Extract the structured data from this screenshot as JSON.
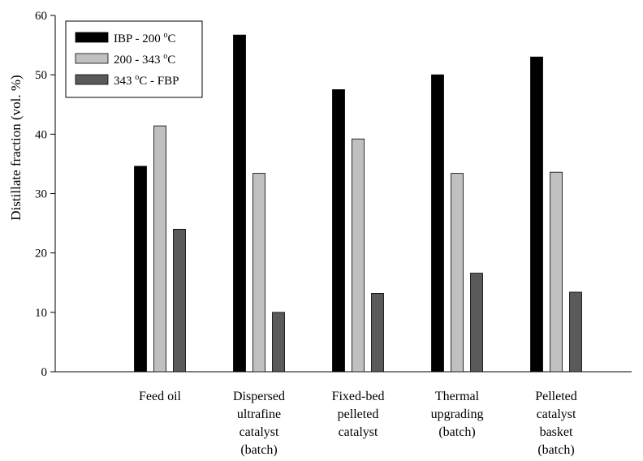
{
  "chart_data": {
    "type": "bar",
    "ylabel": "Distillate fraction (vol. %)",
    "xlabel": "",
    "ylim": [
      0,
      60
    ],
    "yticks": [
      0,
      10,
      20,
      30,
      40,
      50,
      60
    ],
    "categories": [
      [
        "Feed oil"
      ],
      [
        "Dispersed",
        "ultrafine",
        "catalyst",
        "(batch)"
      ],
      [
        "Fixed-bed",
        "pelleted",
        "catalyst"
      ],
      [
        "Thermal",
        "upgrading",
        "(batch)"
      ],
      [
        "Pelleted",
        "catalyst",
        "basket",
        "(batch)"
      ]
    ],
    "series": [
      {
        "name": "IBP - 200 °C",
        "legend": {
          "pre": "IBP - 200 ",
          "sup": "o",
          "post": "C"
        },
        "color": "#000000",
        "values": [
          34.6,
          56.7,
          47.5,
          50.0,
          53.0
        ]
      },
      {
        "name": "200 - 343 °C",
        "legend": {
          "pre": "200 - 343 ",
          "sup": "o",
          "post": "C"
        },
        "color": "#c0c0c0",
        "values": [
          41.4,
          33.4,
          39.2,
          33.4,
          33.6
        ]
      },
      {
        "name": "343 °C - FBP",
        "legend": {
          "pre": "343 ",
          "sup": "o",
          "post": "C - FBP"
        },
        "color": "#5a5a5a",
        "values": [
          24.0,
          10.0,
          13.2,
          16.6,
          13.4
        ]
      }
    ],
    "legend_position": "top-left",
    "grid": false
  }
}
